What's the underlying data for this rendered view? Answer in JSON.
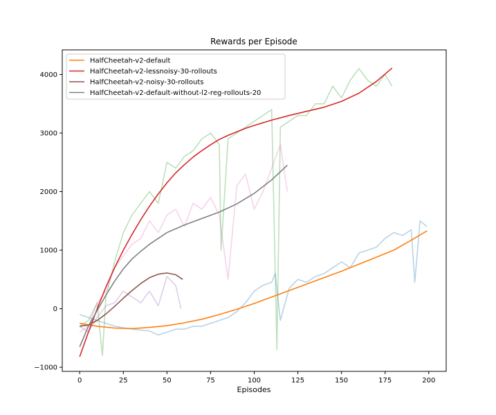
{
  "chart_data": {
    "type": "line",
    "title": "Rewards per Episode",
    "xlabel": "Episodes",
    "ylabel": "",
    "xlim": [
      -10,
      210
    ],
    "ylim": [
      -1070,
      4420
    ],
    "xticks": [
      0,
      25,
      50,
      75,
      100,
      125,
      150,
      175,
      200
    ],
    "yticks": [
      -1000,
      0,
      1000,
      2000,
      3000,
      4000
    ],
    "ytick_labels": [
      "−1000",
      "0",
      "1000",
      "2000",
      "3000",
      "4000"
    ],
    "grid": false,
    "legend_position": "top-left",
    "series": [
      {
        "name": "HalfCheetah-v2-default",
        "color": "#ff7f0e",
        "raw_color": "#1f77b4",
        "raw_x": [
          0,
          10,
          20,
          30,
          40,
          45,
          50,
          55,
          60,
          65,
          70,
          75,
          80,
          85,
          90,
          95,
          100,
          105,
          110,
          112,
          115,
          120,
          125,
          130,
          135,
          140,
          145,
          150,
          155,
          160,
          165,
          170,
          175,
          180,
          185,
          190,
          192,
          195,
          199
        ],
        "raw_y": [
          -100,
          -200,
          -300,
          -350,
          -380,
          -450,
          -400,
          -350,
          -350,
          -300,
          -300,
          -250,
          -200,
          -150,
          -50,
          100,
          300,
          400,
          450,
          600,
          -200,
          350,
          500,
          450,
          550,
          600,
          700,
          800,
          700,
          950,
          1000,
          1050,
          1200,
          1300,
          1250,
          1350,
          450,
          1500,
          1400
        ],
        "smooth_x": [
          0,
          10,
          20,
          30,
          40,
          50,
          60,
          70,
          80,
          90,
          100,
          110,
          120,
          130,
          140,
          150,
          160,
          170,
          180,
          190,
          199
        ],
        "smooth_y": [
          -250,
          -300,
          -330,
          -340,
          -320,
          -290,
          -240,
          -180,
          -100,
          -10,
          90,
          200,
          310,
          420,
          530,
          640,
          760,
          880,
          1000,
          1170,
          1330
        ]
      },
      {
        "name": "HalfCheetah-v2-lessnoisy-30-rollouts",
        "color": "#d62728",
        "raw_color": "#2ca02c",
        "raw_x": [
          0,
          5,
          10,
          13,
          15,
          20,
          25,
          30,
          35,
          40,
          45,
          50,
          55,
          60,
          65,
          70,
          75,
          80,
          81,
          85,
          90,
          95,
          100,
          105,
          110,
          113,
          115,
          120,
          125,
          130,
          135,
          140,
          145,
          150,
          155,
          160,
          165,
          170,
          175,
          179
        ],
        "raw_y": [
          -300,
          -200,
          100,
          -800,
          200,
          800,
          1300,
          1600,
          1800,
          2000,
          1800,
          2500,
          2400,
          2600,
          2700,
          2900,
          3000,
          2800,
          1000,
          2900,
          3000,
          3100,
          3200,
          3300,
          3400,
          -700,
          3100,
          3200,
          3300,
          3300,
          3500,
          3500,
          3800,
          3600,
          3900,
          4100,
          3900,
          3800,
          4000,
          3800
        ],
        "smooth_x": [
          0,
          5,
          10,
          15,
          20,
          25,
          30,
          35,
          40,
          45,
          50,
          55,
          60,
          65,
          70,
          75,
          80,
          85,
          90,
          95,
          100,
          110,
          120,
          130,
          140,
          150,
          160,
          170,
          179
        ],
        "smooth_y": [
          -820,
          -400,
          0,
          370,
          700,
          1000,
          1270,
          1520,
          1750,
          1960,
          2150,
          2320,
          2460,
          2590,
          2700,
          2800,
          2890,
          2960,
          3020,
          3080,
          3130,
          3220,
          3300,
          3370,
          3440,
          3540,
          3680,
          3880,
          4110
        ]
      },
      {
        "name": "HalfCheetah-v2-noisy-30-rollouts",
        "color": "#8c564b",
        "raw_color": "#9467bd",
        "raw_x": [
          0,
          5,
          10,
          15,
          20,
          25,
          30,
          35,
          40,
          45,
          50,
          55,
          58
        ],
        "raw_y": [
          -300,
          -400,
          -150,
          50,
          100,
          300,
          200,
          100,
          300,
          50,
          550,
          400,
          0
        ],
        "smooth_x": [
          0,
          5,
          10,
          15,
          20,
          25,
          30,
          35,
          40,
          45,
          50,
          55,
          59
        ],
        "smooth_y": [
          -300,
          -280,
          -200,
          -90,
          40,
          180,
          310,
          430,
          530,
          590,
          610,
          580,
          500
        ]
      },
      {
        "name": "HalfCheetah-v2-default-without-l2-reg-rollouts-20",
        "color": "#7f7f7f",
        "raw_color": "#e377c2",
        "raw_x": [
          0,
          5,
          10,
          15,
          20,
          25,
          30,
          35,
          40,
          45,
          50,
          55,
          60,
          65,
          70,
          75,
          80,
          85,
          90,
          95,
          100,
          105,
          110,
          115,
          119
        ],
        "raw_y": [
          -400,
          -300,
          100,
          300,
          700,
          900,
          1100,
          1200,
          1500,
          1300,
          1600,
          1700,
          1400,
          1800,
          1700,
          1900,
          1600,
          500,
          2100,
          2300,
          1700,
          2000,
          2400,
          2800,
          2000
        ],
        "smooth_x": [
          0,
          5,
          10,
          15,
          20,
          25,
          30,
          35,
          40,
          50,
          60,
          70,
          80,
          90,
          100,
          110,
          119
        ],
        "smooth_y": [
          -650,
          -300,
          -30,
          230,
          470,
          680,
          850,
          980,
          1100,
          1300,
          1430,
          1540,
          1650,
          1790,
          1970,
          2200,
          2450
        ]
      }
    ]
  }
}
